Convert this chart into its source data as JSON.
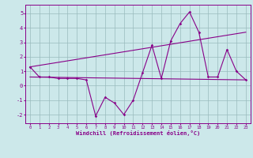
{
  "xlabel": "Windchill (Refroidissement éolien,°C)",
  "bg_color": "#cce8ea",
  "line_color": "#880088",
  "grid_color": "#99bbbd",
  "xlim": [
    -0.5,
    23.5
  ],
  "ylim": [
    -2.6,
    5.6
  ],
  "yticks": [
    -2,
    -1,
    0,
    1,
    2,
    3,
    4,
    5
  ],
  "xticks": [
    0,
    1,
    2,
    3,
    4,
    5,
    6,
    7,
    8,
    9,
    10,
    11,
    12,
    13,
    14,
    15,
    16,
    17,
    18,
    19,
    20,
    21,
    22,
    23
  ],
  "line1_x": [
    0,
    1,
    2,
    3,
    4,
    5,
    6,
    7,
    8,
    9,
    10,
    11,
    12,
    13,
    14,
    15,
    16,
    17,
    18,
    19,
    20,
    21,
    22,
    23
  ],
  "line1_y": [
    1.3,
    0.6,
    0.6,
    0.5,
    0.5,
    0.5,
    0.4,
    -2.1,
    -0.8,
    -1.2,
    -2.0,
    -1.0,
    0.9,
    2.8,
    0.5,
    3.1,
    4.3,
    5.1,
    3.7,
    0.6,
    0.6,
    2.5,
    1.0,
    0.4
  ],
  "line2_x": [
    0,
    23
  ],
  "line2_y": [
    0.6,
    0.4
  ],
  "line3_x": [
    0,
    23
  ],
  "line3_y": [
    1.3,
    3.7
  ]
}
